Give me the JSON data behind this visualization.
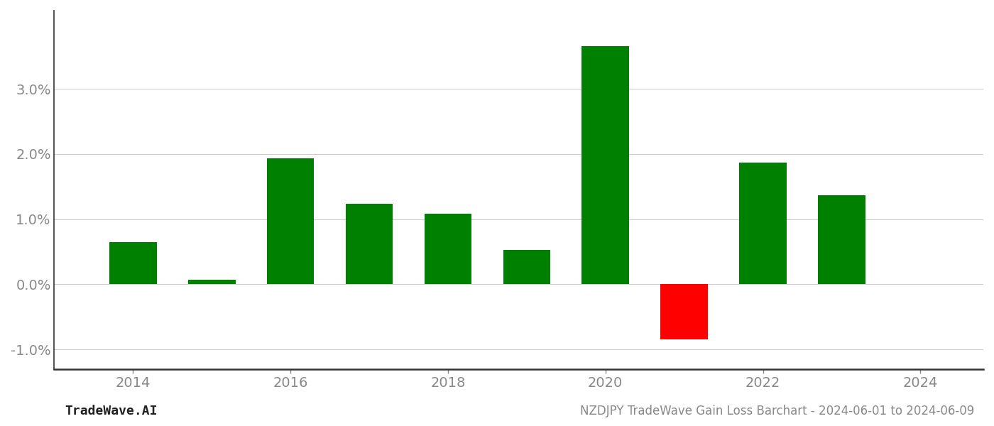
{
  "years": [
    2014,
    2015,
    2016,
    2017,
    2018,
    2019,
    2020,
    2021,
    2022,
    2023
  ],
  "values": [
    0.0065,
    0.0007,
    0.0193,
    0.0123,
    0.0108,
    0.0053,
    0.0365,
    -0.0085,
    0.0187,
    0.0137
  ],
  "colors": [
    "#008000",
    "#008000",
    "#008000",
    "#008000",
    "#008000",
    "#008000",
    "#008000",
    "#ff0000",
    "#008000",
    "#008000"
  ],
  "title": "NZDJPY TradeWave Gain Loss Barchart - 2024-06-01 to 2024-06-09",
  "footer_left": "TradeWave.AI",
  "bar_width": 0.6,
  "xlim_min": 2013.0,
  "xlim_max": 2024.8,
  "ylim_min": -0.013,
  "ylim_max": 0.042,
  "yticks": [
    -0.01,
    0.0,
    0.01,
    0.02,
    0.03
  ],
  "xticks": [
    2014,
    2016,
    2018,
    2020,
    2022,
    2024
  ],
  "background_color": "#ffffff",
  "grid_color": "#cccccc",
  "axis_color": "#333333",
  "text_color": "#888888",
  "tick_fontsize": 14,
  "footer_fontsize": 13,
  "title_fontsize": 12
}
